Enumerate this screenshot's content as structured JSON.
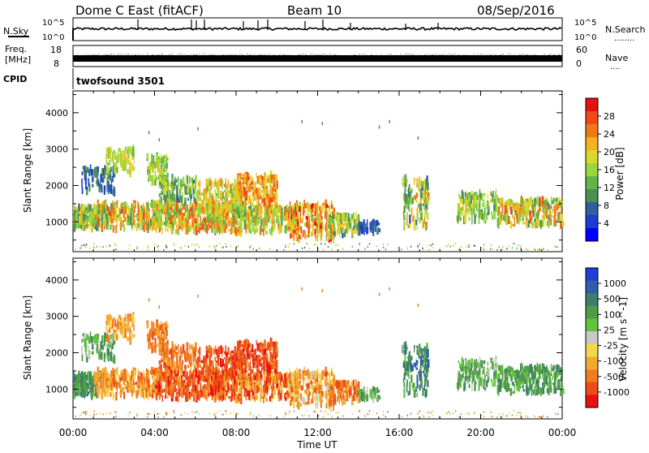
{
  "header": {
    "station": "Dome C East (fitACF)",
    "beam": "Beam 10",
    "date": "08/Sep/2016"
  },
  "side_labels": {
    "nsky": "N.Sky",
    "nsky_hi": "10^5",
    "nsky_lo": "10^0",
    "freq": "Freq.",
    "freq_unit": "[MHz]",
    "freq_hi": "18",
    "freq_lo": "8",
    "cpid": "CPID",
    "nsearch": "N.Search",
    "nsearch_dots": "........",
    "nsearch_hi": "10^5",
    "nsearch_lo": "10^0",
    "nave": "Nave",
    "nave_dots": "....",
    "nave_hi": "60",
    "nave_lo": "0",
    "cpid_text": "twofsound 3501"
  },
  "chart_data": [
    {
      "type": "heatmap",
      "panel": "power",
      "xlabel": "",
      "ylabel": "Slant Range [km]",
      "xlim": [
        0,
        24
      ],
      "ylim": [
        180,
        4600
      ],
      "yticks": [
        1000,
        2000,
        3000,
        4000
      ],
      "colorbar": {
        "label": "Power [dB]",
        "ticks": [
          "4",
          "8",
          "12",
          "16",
          "20",
          "24",
          "28"
        ],
        "colors": [
          "#0000ff",
          "#1c3bd0",
          "#2f5f9f",
          "#4a8f56",
          "#61b547",
          "#9bd63a",
          "#d8d82a",
          "#f5b21e",
          "#f07a1a",
          "#ee4a18",
          "#e81010"
        ]
      }
    },
    {
      "type": "heatmap",
      "panel": "velocity",
      "xlabel": "Time UT",
      "ylabel": "Slant Range [km]",
      "xlim": [
        0,
        24
      ],
      "ylim": [
        180,
        4600
      ],
      "yticks": [
        1000,
        2000,
        3000,
        4000
      ],
      "xticks": [
        "00:00",
        "04:00",
        "08:00",
        "12:00",
        "16:00",
        "20:00",
        "00:00"
      ],
      "colorbar": {
        "label": "Velocity [m s^-1]",
        "ticks": [
          "1000",
          "500",
          "100",
          "25",
          "-25",
          "-100",
          "-500",
          "-1000"
        ],
        "colors": [
          "#1f3fd8",
          "#2f5fa8",
          "#3e7e6a",
          "#4f9c46",
          "#62c23c",
          "#c8c8c8",
          "#f2d84a",
          "#f3a830",
          "#ef7d1e",
          "#ec4a16",
          "#e81010"
        ]
      }
    }
  ]
}
